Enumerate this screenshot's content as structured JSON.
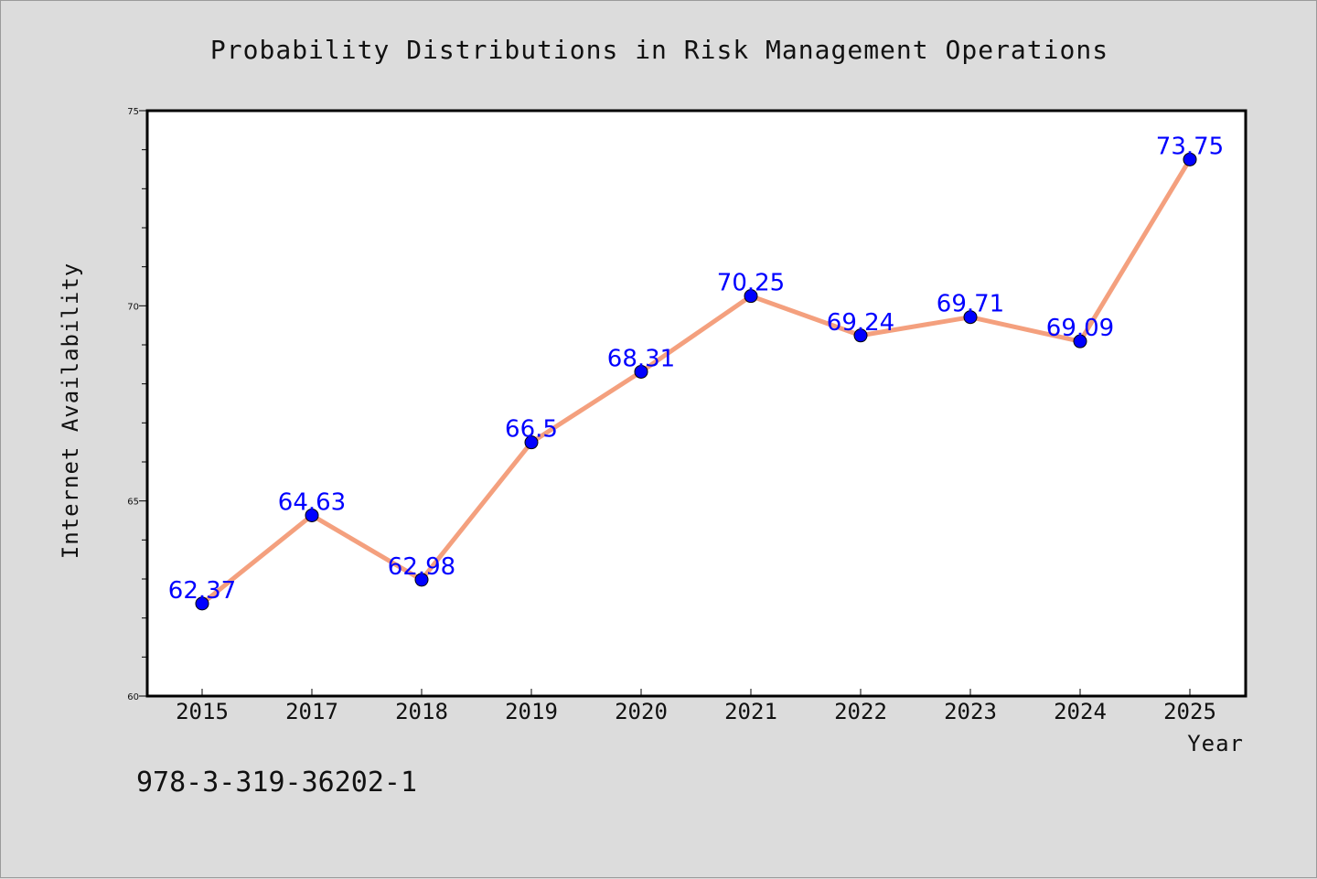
{
  "chart_data": {
    "type": "line",
    "title": "Probability Distributions in Risk Management Operations",
    "xlabel": "Year",
    "ylabel": "Internet Availability",
    "categories": [
      "2015",
      "2017",
      "2018",
      "2019",
      "2020",
      "2021",
      "2022",
      "2023",
      "2024",
      "2025"
    ],
    "series": [
      {
        "values": [
          62.37,
          64.63,
          62.98,
          66.5,
          68.31,
          70.25,
          69.24,
          69.71,
          69.09,
          73.75
        ],
        "data_labels": [
          "62.37",
          "64.63",
          "62.98",
          "66.5",
          "68.31",
          "70.25",
          "69.24",
          "69.71",
          "69.09",
          "73.75"
        ],
        "line_color": "#f4a07e",
        "marker_color": "#0000ff"
      }
    ],
    "ylim": [
      60,
      75
    ],
    "yticks": [
      "60",
      "65",
      "70",
      "75"
    ],
    "grid": false,
    "legend": "none"
  },
  "footer": {
    "text": "978-3-319-36202-1"
  }
}
